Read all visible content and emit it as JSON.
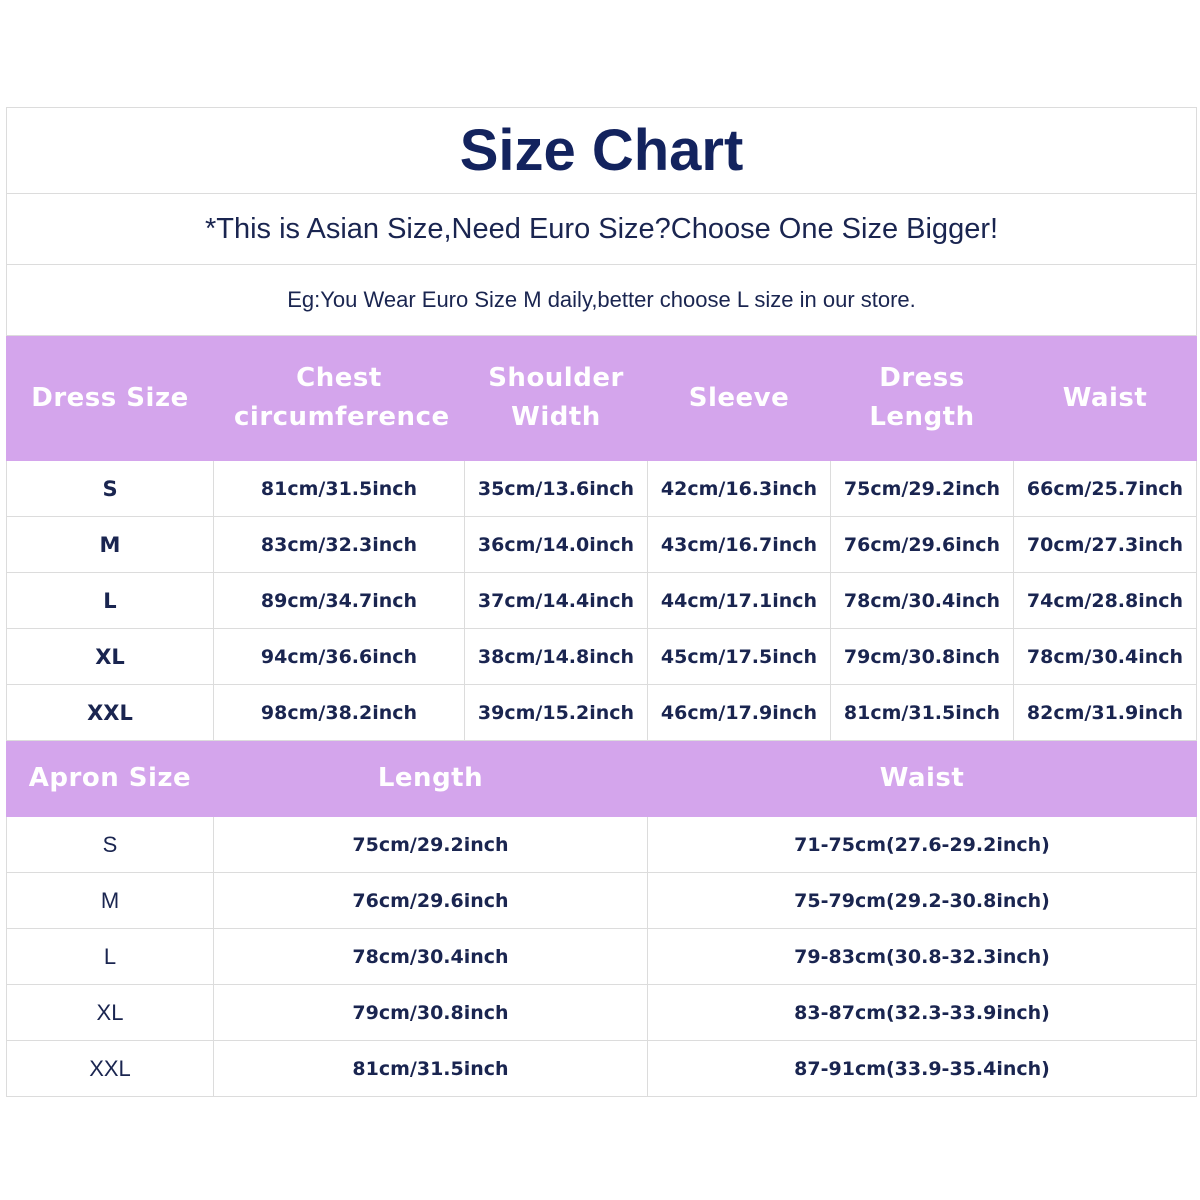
{
  "title": "Size Chart",
  "subtitle": "*This is Asian Size,Need Euro Size?Choose One Size Bigger!",
  "note": "Eg:You Wear Euro Size M daily,better choose L size in our store.",
  "colors": {
    "header_bg": "#d4a5ec",
    "text": "#1a2550",
    "title": "#13235e"
  },
  "dress": {
    "headers": [
      "Dress Size",
      "Chest circumference",
      "Shoulder Width",
      "Sleeve",
      "Dress Length",
      "Waist"
    ],
    "rows": [
      [
        "S",
        "81cm/31.5inch",
        "35cm/13.6inch",
        "42cm/16.3inch",
        "75cm/29.2inch",
        "66cm/25.7inch"
      ],
      [
        "M",
        "83cm/32.3inch",
        "36cm/14.0inch",
        "43cm/16.7inch",
        "76cm/29.6inch",
        "70cm/27.3inch"
      ],
      [
        "L",
        "89cm/34.7inch",
        "37cm/14.4inch",
        "44cm/17.1inch",
        "78cm/30.4inch",
        "74cm/28.8inch"
      ],
      [
        "XL",
        "94cm/36.6inch",
        "38cm/14.8inch",
        "45cm/17.5inch",
        "79cm/30.8inch",
        "78cm/30.4inch"
      ],
      [
        "XXL",
        "98cm/38.2inch",
        "39cm/15.2inch",
        "46cm/17.9inch",
        "81cm/31.5inch",
        "82cm/31.9inch"
      ]
    ]
  },
  "apron": {
    "headers": [
      "Apron Size",
      "Length",
      "Waist"
    ],
    "rows": [
      [
        "S",
        "75cm/29.2inch",
        "71-75cm(27.6-29.2inch)"
      ],
      [
        "M",
        "76cm/29.6inch",
        "75-79cm(29.2-30.8inch)"
      ],
      [
        "L",
        "78cm/30.4inch",
        "79-83cm(30.8-32.3inch)"
      ],
      [
        "XL",
        "79cm/30.8inch",
        "83-87cm(32.3-33.9inch)"
      ],
      [
        "XXL",
        "81cm/31.5inch",
        "87-91cm(33.9-35.4inch)"
      ]
    ]
  }
}
